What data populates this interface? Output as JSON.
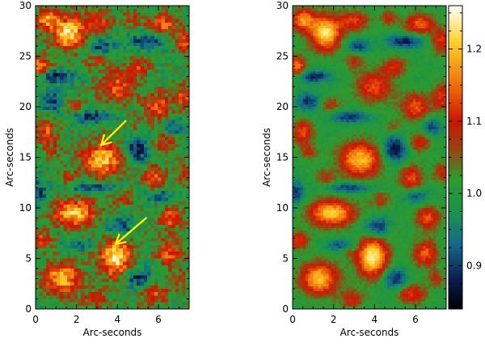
{
  "chart_data": [
    {
      "type": "heatmap",
      "title": "",
      "xlabel": "Arc-seconds",
      "ylabel": "Arc-seconds",
      "xlim": [
        0,
        7.5
      ],
      "ylim": [
        0,
        30
      ],
      "x_ticks": [
        "0",
        "2",
        "4",
        "6"
      ],
      "y_ticks": [
        "0",
        "5",
        "10",
        "15",
        "20",
        "25",
        "30"
      ],
      "pixelated": true,
      "annotations": [
        {
          "kind": "arrow",
          "color": "#ffff00",
          "tip": [
            3.2,
            16.2
          ],
          "tail": [
            4.4,
            18.6
          ]
        },
        {
          "kind": "arrow",
          "color": "#ffff00",
          "tip": [
            3.9,
            6.4
          ],
          "tail": [
            5.4,
            9.0
          ]
        }
      ]
    },
    {
      "type": "heatmap",
      "title": "",
      "xlabel": "Arc-seconds",
      "ylabel": "Arc-seconds",
      "xlim": [
        0,
        7.5
      ],
      "ylim": [
        0,
        30
      ],
      "x_ticks": [
        "0",
        "2",
        "4",
        "6"
      ],
      "y_ticks": [
        "0",
        "5",
        "10",
        "15",
        "20",
        "25",
        "30"
      ],
      "pixelated": false
    }
  ],
  "colorbar": {
    "range": [
      0.84,
      1.26
    ],
    "ticks": [
      {
        "value": 0.9,
        "label": "0.9"
      },
      {
        "value": 1.0,
        "label": "1.0"
      },
      {
        "value": 1.1,
        "label": "1.1"
      },
      {
        "value": 1.2,
        "label": "1.2"
      }
    ]
  },
  "granules": [
    {
      "x": 1.6,
      "y": 27.3,
      "v": 1.23,
      "sx": 0.75,
      "sy": 1.7
    },
    {
      "x": 0.5,
      "y": 28.6,
      "v": 1.17,
      "sx": 0.55,
      "sy": 1.1
    },
    {
      "x": 0.2,
      "y": 24.0,
      "v": 1.16,
      "sx": 0.45,
      "sy": 1.0
    },
    {
      "x": 3.0,
      "y": 28.5,
      "v": 1.12,
      "sx": 0.7,
      "sy": 1.0
    },
    {
      "x": 6.2,
      "y": 28.2,
      "v": 1.14,
      "sx": 0.75,
      "sy": 1.0
    },
    {
      "x": 7.3,
      "y": 26.5,
      "v": 1.12,
      "sx": 0.55,
      "sy": 1.2
    },
    {
      "x": 5.0,
      "y": 24.0,
      "v": 1.1,
      "sx": 0.6,
      "sy": 0.9
    },
    {
      "x": 4.0,
      "y": 22.0,
      "v": 1.13,
      "sx": 0.9,
      "sy": 1.6
    },
    {
      "x": 1.8,
      "y": 20.2,
      "v": 1.08,
      "sx": 0.55,
      "sy": 0.8
    },
    {
      "x": 0.5,
      "y": 17.5,
      "v": 1.13,
      "sx": 0.5,
      "sy": 1.3
    },
    {
      "x": 6.0,
      "y": 20.0,
      "v": 1.14,
      "sx": 0.7,
      "sy": 1.3
    },
    {
      "x": 7.3,
      "y": 21.0,
      "v": 1.12,
      "sx": 0.45,
      "sy": 1.3
    },
    {
      "x": 6.2,
      "y": 16.5,
      "v": 1.1,
      "sx": 0.6,
      "sy": 1.0
    },
    {
      "x": 3.3,
      "y": 14.8,
      "v": 1.2,
      "sx": 1.0,
      "sy": 1.7
    },
    {
      "x": 5.8,
      "y": 13.0,
      "v": 1.13,
      "sx": 0.55,
      "sy": 1.3
    },
    {
      "x": 1.6,
      "y": 13.0,
      "v": 1.07,
      "sx": 0.5,
      "sy": 0.8
    },
    {
      "x": 1.9,
      "y": 9.5,
      "v": 1.21,
      "sx": 1.1,
      "sy": 1.3
    },
    {
      "x": 4.3,
      "y": 10.8,
      "v": 1.08,
      "sx": 0.5,
      "sy": 0.8
    },
    {
      "x": 6.6,
      "y": 9.0,
      "v": 1.13,
      "sx": 0.6,
      "sy": 1.2
    },
    {
      "x": 3.9,
      "y": 5.2,
      "v": 1.24,
      "sx": 0.75,
      "sy": 2.0
    },
    {
      "x": 1.3,
      "y": 3.0,
      "v": 1.2,
      "sx": 0.9,
      "sy": 1.6
    },
    {
      "x": 0.3,
      "y": 6.8,
      "v": 1.12,
      "sx": 0.5,
      "sy": 0.9
    },
    {
      "x": 6.5,
      "y": 5.5,
      "v": 1.14,
      "sx": 0.6,
      "sy": 1.3
    },
    {
      "x": 5.8,
      "y": 1.5,
      "v": 1.12,
      "sx": 0.7,
      "sy": 1.0
    },
    {
      "x": 2.9,
      "y": 1.0,
      "v": 1.1,
      "sx": 0.6,
      "sy": 0.9
    },
    {
      "x": 7.3,
      "y": 13.5,
      "v": 1.1,
      "sx": 0.4,
      "sy": 1.0
    },
    {
      "x": 4.7,
      "y": 28.8,
      "v": 1.08,
      "sx": 0.45,
      "sy": 0.8
    },
    {
      "x": 3.0,
      "y": 24.5,
      "v": 1.08,
      "sx": 0.45,
      "sy": 0.8
    },
    {
      "x": 4.9,
      "y": 18.0,
      "v": 1.06,
      "sx": 0.4,
      "sy": 0.7
    },
    {
      "x": 0.8,
      "y": 15.5,
      "v": 1.07,
      "sx": 0.45,
      "sy": 0.8
    },
    {
      "x": 4.9,
      "y": 7.8,
      "v": 1.06,
      "sx": 0.45,
      "sy": 0.8
    },
    {
      "x": 2.7,
      "y": 5.8,
      "v": 1.05,
      "sx": 0.4,
      "sy": 0.7
    },
    {
      "x": 7.0,
      "y": 3.0,
      "v": 1.08,
      "sx": 0.4,
      "sy": 0.9
    }
  ],
  "lanes": [
    {
      "x": 1.0,
      "y": 23.0,
      "v": 0.88,
      "sx": 0.9,
      "sy": 0.6
    },
    {
      "x": 5.5,
      "y": 26.5,
      "v": 0.88,
      "sx": 0.9,
      "sy": 0.7
    },
    {
      "x": 2.8,
      "y": 19.0,
      "v": 0.89,
      "sx": 1.0,
      "sy": 0.6
    },
    {
      "x": 0.8,
      "y": 20.5,
      "v": 0.89,
      "sx": 0.6,
      "sy": 1.0
    },
    {
      "x": 5.0,
      "y": 15.8,
      "v": 0.86,
      "sx": 0.6,
      "sy": 1.4
    },
    {
      "x": 2.8,
      "y": 12.0,
      "v": 0.89,
      "sx": 1.1,
      "sy": 0.5
    },
    {
      "x": 4.2,
      "y": 8.0,
      "v": 0.87,
      "sx": 0.8,
      "sy": 1.0
    },
    {
      "x": 2.4,
      "y": 6.3,
      "v": 0.9,
      "sx": 0.8,
      "sy": 0.6
    },
    {
      "x": 5.0,
      "y": 3.0,
      "v": 0.88,
      "sx": 0.6,
      "sy": 1.1
    },
    {
      "x": 0.2,
      "y": 11.5,
      "v": 0.9,
      "sx": 0.4,
      "sy": 1.2
    },
    {
      "x": 6.8,
      "y": 18.0,
      "v": 0.9,
      "sx": 0.5,
      "sy": 0.9
    },
    {
      "x": 3.2,
      "y": 26.0,
      "v": 0.9,
      "sx": 0.6,
      "sy": 0.7
    },
    {
      "x": 6.0,
      "y": 11.2,
      "v": 0.9,
      "sx": 0.6,
      "sy": 0.7
    }
  ]
}
